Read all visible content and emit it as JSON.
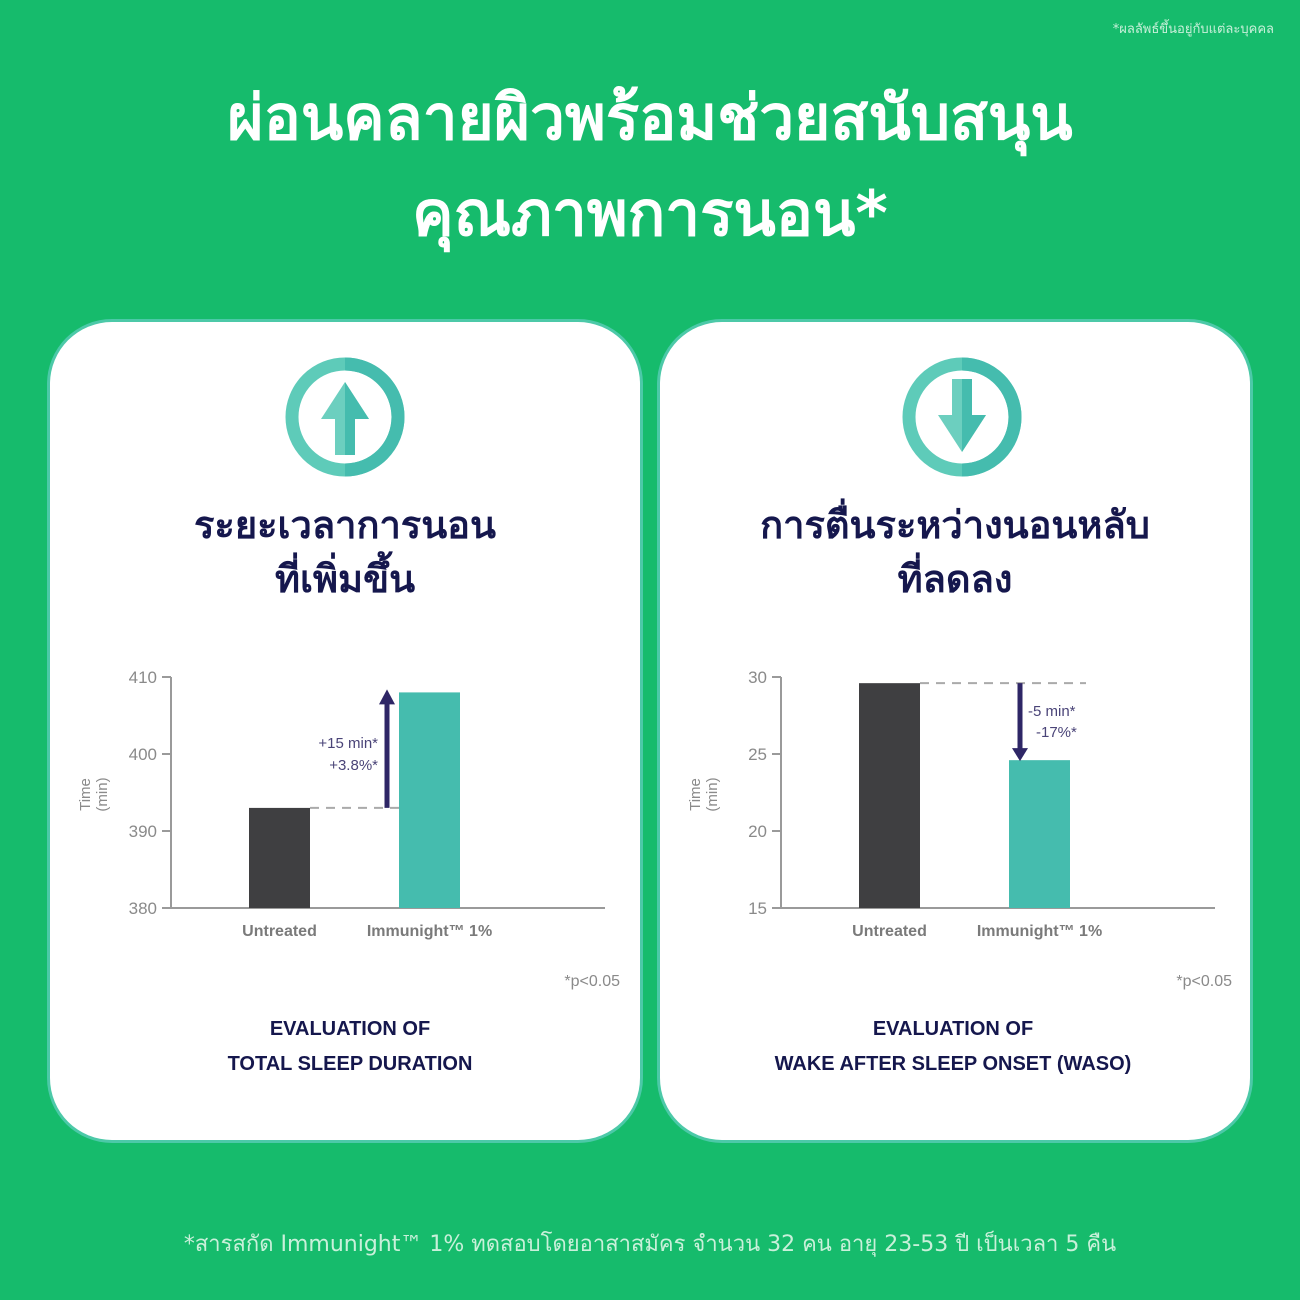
{
  "note": "*ผลลัพธ์ขึ้นอยู่กับแต่ละบุคคล",
  "title": {
    "line1": "ผ่อนคลายผิวพร้อมช่วยสนับสนุน",
    "line2": "คุณภาพการนอน*"
  },
  "colors": {
    "background": "#16bb6c",
    "navy": "#15174d",
    "teal": "#45bcae",
    "dark": "#3f3f41"
  },
  "cards": [
    {
      "icon": "arrow-up-icon",
      "title1": "ระยะเวลาการนอน",
      "title2": "ที่เพิ่มขึ้น",
      "eval1": "EVALUATION OF",
      "eval2": "TOTAL SLEEP DURATION"
    },
    {
      "icon": "arrow-down-icon",
      "title1": "การตื่นระหว่างนอนหลับ",
      "title2": "ที่ลดลง",
      "eval1": "EVALUATION OF",
      "eval2": "WAKE AFTER SLEEP ONSET (WASO)"
    }
  ],
  "chart_data": [
    {
      "type": "bar",
      "categories": [
        "Untreated",
        "Immunight™ 1%"
      ],
      "values": [
        393,
        408
      ],
      "ylabel": "Time (min)",
      "ylim": [
        380,
        410
      ],
      "yticks": [
        380,
        390,
        400,
        410
      ],
      "annotation": [
        "+15 min*",
        "+3.8%*"
      ],
      "footnote": "*p<0.05",
      "grid": false
    },
    {
      "type": "bar",
      "categories": [
        "Untreated",
        "Immunight™ 1%"
      ],
      "values": [
        29.6,
        24.6
      ],
      "ylabel": "Time (min)",
      "ylim": [
        15,
        30
      ],
      "yticks": [
        15,
        20,
        25,
        30
      ],
      "annotation": [
        "-5 min*",
        "-17%*"
      ],
      "footnote": "*p<0.05",
      "grid": false
    }
  ],
  "footer": "*สารสกัด Immunight™ 1% ทดสอบโดยอาสาสมัคร จำนวน 32 คน อายุ 23-53  ปี เป็นเวลา 5 คืน"
}
